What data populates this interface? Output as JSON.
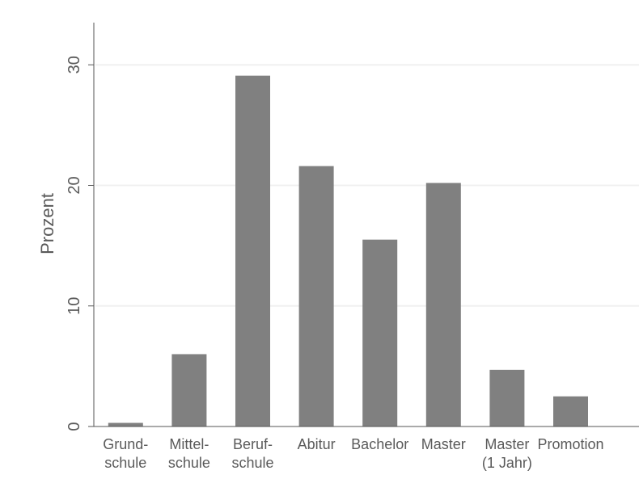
{
  "chart_data": {
    "type": "bar",
    "categories": [
      [
        "Grund-",
        "schule"
      ],
      [
        "Mittel-",
        "schule"
      ],
      [
        "Beruf-",
        "schule"
      ],
      [
        "Abitur"
      ],
      [
        "Bachelor"
      ],
      [
        "Master"
      ],
      [
        "Master",
        "(1 Jahr)"
      ],
      [
        "Promotion"
      ]
    ],
    "values": [
      0.3,
      6.0,
      29.1,
      21.6,
      15.5,
      20.2,
      4.7,
      2.5
    ],
    "title": "",
    "xlabel": "",
    "ylabel": "Prozent",
    "ylim": [
      0,
      33.5
    ],
    "yticks": [
      0,
      10,
      20,
      30
    ],
    "grid": true,
    "colors": {
      "bar": "#808080",
      "axis": "#555555",
      "grid": "#f0f0f0",
      "text": "#5a5a5a"
    }
  }
}
